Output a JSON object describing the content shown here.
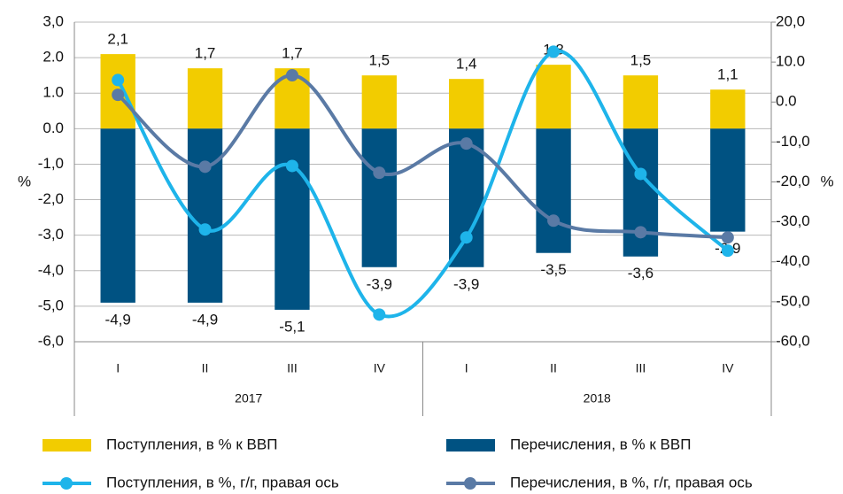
{
  "chart_data": {
    "type": "bar",
    "categories": [
      "I",
      "II",
      "III",
      "IV",
      "I",
      "II",
      "III",
      "IV"
    ],
    "groups": [
      "2017",
      "2018"
    ],
    "ylabel": "%",
    "y2label": "%",
    "ylim": [
      -6,
      3
    ],
    "yticks": [
      {
        "value": 3,
        "label": "3,0"
      },
      {
        "value": 2,
        "label": "2.0"
      },
      {
        "value": 1,
        "label": "1.0"
      },
      {
        "value": 0,
        "label": "0.0"
      },
      {
        "value": -1,
        "label": "-1,0"
      },
      {
        "value": -2,
        "label": "-2,0"
      },
      {
        "value": -3,
        "label": "-3,0"
      },
      {
        "value": -4,
        "label": "-4,0"
      },
      {
        "value": -5,
        "label": "-5,0"
      },
      {
        "value": -6,
        "label": "-6,0"
      }
    ],
    "y2lim": [
      -60,
      20
    ],
    "y2ticks": [
      {
        "value": 20,
        "label": "20,0"
      },
      {
        "value": 10,
        "label": "10.0"
      },
      {
        "value": 0,
        "label": "0.0"
      },
      {
        "value": -10,
        "label": "-10,0"
      },
      {
        "value": -20,
        "label": "-20,0"
      },
      {
        "value": -30,
        "label": "-30,0"
      },
      {
        "value": -40,
        "label": "-40,0"
      },
      {
        "value": -50,
        "label": "-50,0"
      },
      {
        "value": -60,
        "label": "-60,0"
      }
    ],
    "grid": true,
    "series": [
      {
        "name": "Поступления, в % к ВВП",
        "type": "bar",
        "color": "#f2cc00",
        "values": [
          2.1,
          1.7,
          1.7,
          1.5,
          1.4,
          1.8,
          1.5,
          1.1
        ],
        "value_labels": [
          "2,1",
          "1,7",
          "1,7",
          "1,5",
          "1,4",
          "1,8",
          "1,5",
          "1,1"
        ]
      },
      {
        "name": "Перечисления, в % к ВВП",
        "type": "bar",
        "color": "#005282",
        "values": [
          -4.9,
          -4.9,
          -5.1,
          -3.9,
          -3.9,
          -3.5,
          -3.6,
          -2.9
        ],
        "value_labels": [
          "-4,9",
          "-4,9",
          "-5,1",
          "-3,9",
          "-3,9",
          "-3,5",
          "-3,6",
          "-2,9"
        ]
      },
      {
        "name": "Поступления, в %, г/г, правая ось",
        "type": "line",
        "axis": "y2",
        "color": "#1eb4ea",
        "values": [
          5.5,
          -31.9,
          -16,
          -53.2,
          -33.9,
          12.6,
          -18,
          -37.2
        ]
      },
      {
        "name": "Перечисления, в %, г/г, правая ось",
        "type": "line",
        "axis": "y2",
        "color": "#5a7aa5",
        "values": [
          1.8,
          -16.2,
          6.7,
          -17.7,
          -10.4,
          -29.7,
          -32.6,
          -33.9
        ]
      }
    ]
  }
}
